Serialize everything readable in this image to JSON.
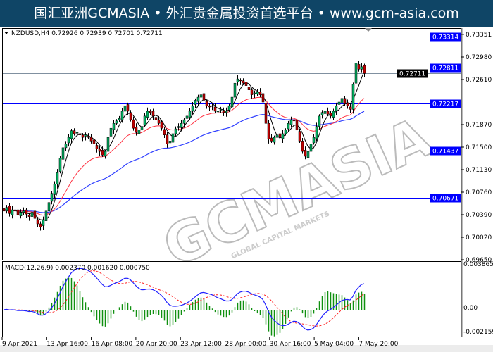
{
  "header": {
    "title": "国汇亚洲GCMASIA • 外汇贵金属投资首选平台 • www.gcm-asia.com"
  },
  "watermark": {
    "brand": "GCMASIA",
    "tagline": "GLOBAL CAPITAL MARKETS"
  },
  "chart_data": {
    "type": "candlestick",
    "symbol_info": "NZDUSD,H4  0.72926 0.72939 0.72701 0.72711",
    "colors": {
      "bull": "#00b060",
      "bear": "#c00000",
      "ma_fast": "#000000",
      "ma_mid": "#ff3040",
      "ma_slow": "#3040ff",
      "level_line": "#0000ff",
      "macd_main": "#2020ff",
      "macd_signal": "#ff2020",
      "macd_hist": "#109010"
    },
    "price_axis": {
      "ticks": [
        "0.73351",
        "0.72980",
        "0.72610",
        "0.71870",
        "0.71500",
        "0.71130",
        "0.70760",
        "0.70390",
        "0.70020",
        "0.69650"
      ],
      "tick_values": [
        0.73351,
        0.7298,
        0.7261,
        0.7187,
        0.715,
        0.7113,
        0.7076,
        0.7039,
        0.7002,
        0.6965
      ],
      "range": [
        0.6965,
        0.735
      ]
    },
    "levels": [
      {
        "value": 0.73314,
        "label": "0.73314"
      },
      {
        "value": 0.72811,
        "label": "0.72811"
      },
      {
        "value": 0.72217,
        "label": "0.72217"
      },
      {
        "value": 0.71437,
        "label": "0.71437"
      },
      {
        "value": 0.70671,
        "label": "0.70671"
      }
    ],
    "current_price": {
      "value": 0.72711,
      "label": "0.72711"
    },
    "time_axis": [
      "9 Apr 2021",
      "13 Apr 16:00",
      "16 Apr 08:00",
      "20 Apr 20:00",
      "23 Apr 12:00",
      "28 Apr 00:00",
      "30 Apr 16:00",
      "5 May 04:00",
      "7 May 20:00"
    ],
    "closes": [
      0.7045,
      0.7051,
      0.7041,
      0.7047,
      0.7045,
      0.7039,
      0.7043,
      0.7045,
      0.704,
      0.7036,
      0.7043,
      0.7033,
      0.7024,
      0.7019,
      0.7031,
      0.7045,
      0.7059,
      0.7074,
      0.7089,
      0.7108,
      0.7132,
      0.7149,
      0.7155,
      0.7166,
      0.7177,
      0.7172,
      0.7174,
      0.717,
      0.7166,
      0.717,
      0.7166,
      0.716,
      0.7155,
      0.7147,
      0.7143,
      0.7137,
      0.7143,
      0.7166,
      0.7181,
      0.7189,
      0.7193,
      0.7197,
      0.7209,
      0.7218,
      0.7209,
      0.7195,
      0.7181,
      0.7174,
      0.7178,
      0.7184,
      0.7201,
      0.7209,
      0.7207,
      0.7201,
      0.7195,
      0.7189,
      0.7181,
      0.717,
      0.7155,
      0.716,
      0.7172,
      0.718,
      0.7184,
      0.7189,
      0.7195,
      0.7201,
      0.7209,
      0.7218,
      0.7227,
      0.7232,
      0.7236,
      0.7227,
      0.7218,
      0.7216,
      0.7218,
      0.7209,
      0.7209,
      0.7212,
      0.7207,
      0.7209,
      0.7218,
      0.7232,
      0.7255,
      0.7262,
      0.7259,
      0.7255,
      0.7251,
      0.7244,
      0.7236,
      0.7239,
      0.7241,
      0.7236,
      0.7224,
      0.7189,
      0.7163,
      0.716,
      0.7166,
      0.717,
      0.7166,
      0.7172,
      0.7178,
      0.7189,
      0.7195,
      0.7193,
      0.7178,
      0.716,
      0.7143,
      0.7135,
      0.7143,
      0.7155,
      0.7166,
      0.7184,
      0.7201,
      0.7207,
      0.7209,
      0.7204,
      0.7201,
      0.7209,
      0.7218,
      0.7224,
      0.723,
      0.7221,
      0.7218,
      0.7212,
      0.7253,
      0.7288,
      0.7278,
      0.7282,
      0.7271
    ],
    "macd": {
      "label": "MACD(12,26,9) 0.002370 0.001620 0.000750",
      "params": [
        12,
        26,
        9
      ],
      "main": 0.00237,
      "signal": 0.00162,
      "hist": 0.00075,
      "ticks": [
        "0.003865",
        "0.00",
        "-0.002159"
      ],
      "range": [
        -0.002159,
        0.003865
      ]
    }
  }
}
